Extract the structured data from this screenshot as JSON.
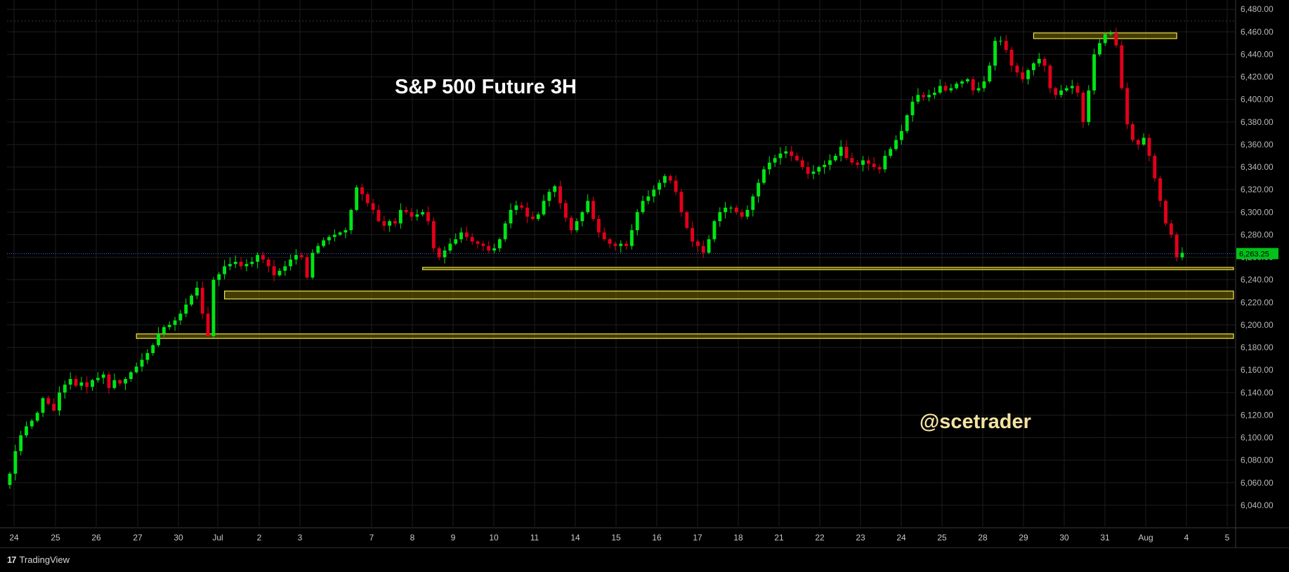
{
  "chart_data": {
    "type": "candlestick",
    "title": "S&P 500 Future 3H",
    "watermark": "@scetrader",
    "last_price": 6263.25,
    "last_price_label": "6,263.25",
    "ylim": [
      6020,
      6482
    ],
    "y_ticks": [
      6040,
      6060,
      6080,
      6100,
      6120,
      6140,
      6160,
      6180,
      6200,
      6220,
      6240,
      6260,
      6280,
      6300,
      6320,
      6340,
      6360,
      6380,
      6400,
      6420,
      6440,
      6460,
      6480
    ],
    "y_tick_labels": [
      "6,040.00",
      "6,060.00",
      "6,080.00",
      "6,100.00",
      "6,120.00",
      "6,140.00",
      "6,160.00",
      "6,180.00",
      "6,200.00",
      "6,220.00",
      "6,240.00",
      "6,260.00",
      "6,280.00",
      "6,300.00",
      "6,320.00",
      "6,340.00",
      "6,360.00",
      "6,380.00",
      "6,400.00",
      "6,420.00",
      "6,440.00",
      "6,460.00",
      "6,480.00"
    ],
    "x_labels": [
      "24",
      "25",
      "26",
      "27",
      "30",
      "Jul",
      "2",
      "3",
      "7",
      "8",
      "9",
      "10",
      "11",
      "14",
      "15",
      "16",
      "17",
      "18",
      "21",
      "22",
      "23",
      "24",
      "25",
      "28",
      "29",
      "30",
      "31",
      "Aug",
      "4",
      "5"
    ],
    "closes": [
      6068,
      6088,
      6102,
      6110,
      6115,
      6122,
      6135,
      6130,
      6124,
      6140,
      6147,
      6152,
      6146,
      6149,
      6145,
      6151,
      6153,
      6156,
      6144,
      6151,
      6148,
      6152,
      6158,
      6163,
      6169,
      6175,
      6182,
      6192,
      6198,
      6200,
      6204,
      6210,
      6218,
      6226,
      6233,
      6210,
      6190,
      6240,
      6245,
      6252,
      6254,
      6256,
      6252,
      6254,
      6256,
      6262,
      6258,
      6252,
      6244,
      6248,
      6252,
      6258,
      6262,
      6260,
      6242,
      6264,
      6270,
      6275,
      6278,
      6280,
      6282,
      6284,
      6302,
      6322,
      6316,
      6308,
      6302,
      6292,
      6288,
      6292,
      6290,
      6302,
      6300,
      6296,
      6298,
      6300,
      6292,
      6268,
      6260,
      6266,
      6272,
      6276,
      6282,
      6278,
      6274,
      6272,
      6270,
      6266,
      6268,
      6276,
      6290,
      6302,
      6306,
      6304,
      6296,
      6294,
      6298,
      6310,
      6318,
      6323,
      6308,
      6295,
      6284,
      6292,
      6300,
      6310,
      6294,
      6282,
      6276,
      6272,
      6270,
      6272,
      6270,
      6284,
      6300,
      6310,
      6314,
      6320,
      6326,
      6332,
      6328,
      6318,
      6300,
      6286,
      6274,
      6270,
      6264,
      6276,
      6292,
      6300,
      6304,
      6304,
      6300,
      6296,
      6302,
      6314,
      6326,
      6338,
      6344,
      6348,
      6352,
      6354,
      6350,
      6346,
      6340,
      6334,
      6336,
      6340,
      6342,
      6346,
      6350,
      6358,
      6348,
      6344,
      6342,
      6346,
      6343,
      6340,
      6338,
      6350,
      6356,
      6364,
      6372,
      6386,
      6398,
      6404,
      6402,
      6404,
      6406,
      6412,
      6408,
      6410,
      6414,
      6416,
      6418,
      6408,
      6410,
      6416,
      6430,
      6452,
      6452,
      6444,
      6430,
      6424,
      6418,
      6426,
      6432,
      6436,
      6430,
      6410,
      6404,
      6408,
      6410,
      6412,
      6406,
      6380,
      6408,
      6440,
      6450,
      6458,
      6459,
      6448,
      6410,
      6378,
      6364,
      6360,
      6366,
      6350,
      6330,
      6310,
      6290,
      6280,
      6260,
      6264
    ],
    "support_bands": [
      {
        "low": 6249,
        "high": 6251,
        "from_index": 75,
        "to_index": 223
      },
      {
        "low": 6223,
        "high": 6230,
        "from_index": 39,
        "to_index": 230
      },
      {
        "low": 6188,
        "high": 6192,
        "from_index": 23,
        "to_index": 231
      },
      {
        "low": 6454,
        "high": 6459,
        "from_index": 186,
        "to_index": 212
      }
    ]
  },
  "footer": {
    "brand_logo": "17",
    "brand_name": "TradingView"
  }
}
